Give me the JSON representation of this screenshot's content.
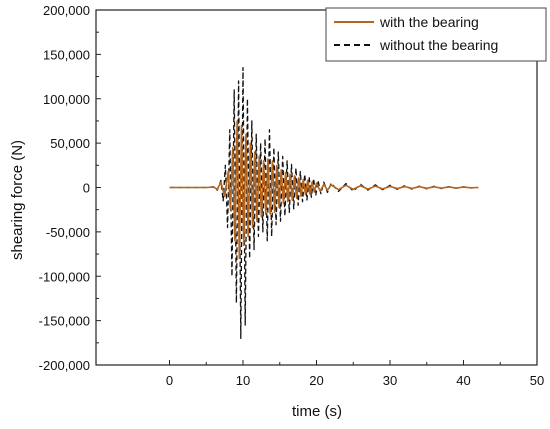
{
  "chart_data": {
    "type": "line",
    "title": "",
    "xlabel": "time (s)",
    "ylabel": "shearing force (N)",
    "xlim": [
      -10,
      50
    ],
    "ylim": [
      -200000,
      200000
    ],
    "xticks": [
      0,
      10,
      20,
      30,
      40,
      50
    ],
    "xtick_labels": [
      "0",
      "10",
      "20",
      "30",
      "40",
      "50"
    ],
    "yticks": [
      -200000,
      -150000,
      -100000,
      -50000,
      0,
      50000,
      100000,
      150000,
      200000
    ],
    "ytick_labels": [
      "-200,000",
      "-150,000",
      "-100,000",
      "-50,000",
      "0",
      "50,000",
      "100,000",
      "150,000",
      "200,000"
    ],
    "grid": false,
    "legend_position": "top-right",
    "series": [
      {
        "name": "with the bearing",
        "color": "#b5651d",
        "style": "solid",
        "points": [
          [
            0,
            0
          ],
          [
            5,
            0
          ],
          [
            6,
            500
          ],
          [
            6.5,
            -2000
          ],
          [
            7,
            6000
          ],
          [
            7.5,
            -10000
          ],
          [
            8,
            18000
          ],
          [
            8.3,
            -25000
          ],
          [
            8.6,
            45000
          ],
          [
            8.9,
            -60000
          ],
          [
            9.2,
            75000
          ],
          [
            9.5,
            -80000
          ],
          [
            9.8,
            70000
          ],
          [
            10.1,
            -65000
          ],
          [
            10.4,
            60000
          ],
          [
            10.7,
            -55000
          ],
          [
            11,
            50000
          ],
          [
            11.3,
            -45000
          ],
          [
            11.6,
            40000
          ],
          [
            11.9,
            -38000
          ],
          [
            12.2,
            35000
          ],
          [
            12.5,
            -33000
          ],
          [
            12.8,
            30000
          ],
          [
            13.1,
            -30000
          ],
          [
            13.4,
            32000
          ],
          [
            13.7,
            -30000
          ],
          [
            14,
            30000
          ],
          [
            14.3,
            -28000
          ],
          [
            14.6,
            25000
          ],
          [
            14.9,
            -22000
          ],
          [
            15.2,
            20000
          ],
          [
            15.5,
            -18000
          ],
          [
            15.8,
            17000
          ],
          [
            16.1,
            -16000
          ],
          [
            16.4,
            15000
          ],
          [
            16.7,
            -14000
          ],
          [
            17,
            13000
          ],
          [
            17.3,
            -12000
          ],
          [
            17.6,
            11000
          ],
          [
            17.9,
            -10000
          ],
          [
            18.2,
            9000
          ],
          [
            18.5,
            -8000
          ],
          [
            18.8,
            8000
          ],
          [
            19.1,
            -7000
          ],
          [
            19.4,
            6000
          ],
          [
            19.7,
            -5000
          ],
          [
            20,
            5000
          ],
          [
            20.5,
            -4000
          ],
          [
            21,
            3500
          ],
          [
            21.5,
            -3000
          ],
          [
            22,
            3000
          ],
          [
            23,
            -2500
          ],
          [
            24,
            2500
          ],
          [
            25,
            -2000
          ],
          [
            26,
            2000
          ],
          [
            27,
            -1800
          ],
          [
            28,
            1500
          ],
          [
            29,
            -1500
          ],
          [
            30,
            1200
          ],
          [
            31,
            -1200
          ],
          [
            32,
            1000
          ],
          [
            33,
            -1000
          ],
          [
            34,
            900
          ],
          [
            35,
            -900
          ],
          [
            36,
            800
          ],
          [
            37,
            -700
          ],
          [
            38,
            600
          ],
          [
            39,
            -600
          ],
          [
            40,
            500
          ],
          [
            41,
            -400
          ],
          [
            42,
            0
          ]
        ]
      },
      {
        "name": "without the bearing",
        "color": "#111111",
        "style": "dashed",
        "points": [
          [
            0,
            0
          ],
          [
            5,
            0
          ],
          [
            6,
            800
          ],
          [
            6.5,
            -3000
          ],
          [
            7,
            8000
          ],
          [
            7.3,
            -15000
          ],
          [
            7.6,
            25000
          ],
          [
            7.9,
            -45000
          ],
          [
            8.2,
            65000
          ],
          [
            8.5,
            -100000
          ],
          [
            8.8,
            110000
          ],
          [
            9.1,
            -130000
          ],
          [
            9.4,
            120000
          ],
          [
            9.7,
            -170000
          ],
          [
            10,
            135000
          ],
          [
            10.3,
            -155000
          ],
          [
            10.6,
            100000
          ],
          [
            10.9,
            -80000
          ],
          [
            11.2,
            75000
          ],
          [
            11.5,
            -70000
          ],
          [
            11.8,
            60000
          ],
          [
            12.1,
            -55000
          ],
          [
            12.4,
            50000
          ],
          [
            12.7,
            -50000
          ],
          [
            13,
            55000
          ],
          [
            13.3,
            -60000
          ],
          [
            13.6,
            65000
          ],
          [
            13.9,
            -55000
          ],
          [
            14.2,
            45000
          ],
          [
            14.5,
            -42000
          ],
          [
            14.8,
            40000
          ],
          [
            15.1,
            -38000
          ],
          [
            15.4,
            35000
          ],
          [
            15.7,
            -32000
          ],
          [
            16,
            30000
          ],
          [
            16.3,
            -28000
          ],
          [
            16.6,
            26000
          ],
          [
            16.9,
            -24000
          ],
          [
            17.2,
            22000
          ],
          [
            17.5,
            -20000
          ],
          [
            17.8,
            18000
          ],
          [
            18.1,
            -16000
          ],
          [
            18.4,
            15000
          ],
          [
            18.7,
            -14000
          ],
          [
            19,
            12000
          ],
          [
            19.3,
            -11000
          ],
          [
            19.6,
            10000
          ],
          [
            19.9,
            -9000
          ],
          [
            20.2,
            8000
          ],
          [
            20.6,
            -7000
          ],
          [
            21,
            6000
          ],
          [
            21.5,
            -5500
          ],
          [
            22,
            5000
          ],
          [
            23,
            -4500
          ],
          [
            24,
            4500
          ],
          [
            25,
            -4000
          ],
          [
            26,
            3500
          ],
          [
            27,
            -3000
          ],
          [
            28,
            3000
          ],
          [
            29,
            -2500
          ],
          [
            30,
            2500
          ],
          [
            31,
            -2200
          ],
          [
            32,
            2000
          ],
          [
            33,
            -1800
          ],
          [
            34,
            1600
          ],
          [
            35,
            -1500
          ],
          [
            36,
            1400
          ],
          [
            37,
            -1200
          ],
          [
            38,
            1000
          ],
          [
            39,
            -900
          ],
          [
            40,
            800
          ],
          [
            41,
            -600
          ],
          [
            42,
            0
          ]
        ]
      }
    ]
  }
}
